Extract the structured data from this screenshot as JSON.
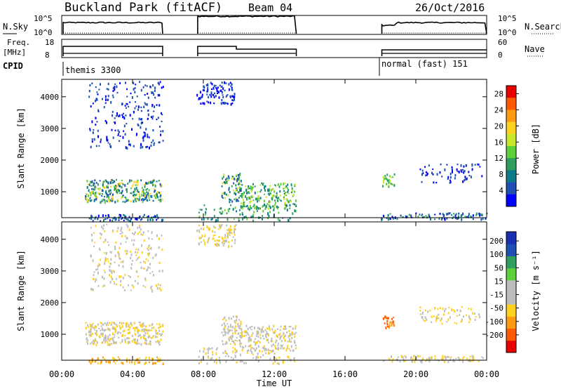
{
  "header": {
    "title": "Buckland Park (fitACF)",
    "beam": "Beam 04",
    "date": "26/Oct/2016"
  },
  "panels": {
    "nsky_label": "N.Sky",
    "nsearch_label": "N.Search",
    "log_ticks": [
      "10^5",
      "10^0"
    ],
    "freq_label_1": "Freq.",
    "freq_label_2": "[MHz]",
    "freq_ticks": [
      "18",
      "8"
    ],
    "nave_label": "Nave",
    "nave_ticks": [
      "60",
      "0"
    ],
    "cpid_label": "CPID",
    "cpid_1": "themis 3300",
    "cpid_2": "normal (fast) 151"
  },
  "colors": {
    "power_scale": [
      "#0000ff",
      "#1f4fb2",
      "#0d7a8a",
      "#2e9f5e",
      "#5fcf3a",
      "#c8e62c",
      "#ffd21e",
      "#ff9b10",
      "#ff5a00",
      "#e60000"
    ],
    "velocity_scale": [
      "#e60000",
      "#ff5a00",
      "#ff9b10",
      "#ffd21e",
      "#bdbdbd",
      "#bdbdbd",
      "#5fcf3a",
      "#2e9f5e",
      "#1f4fb2",
      "#1a2fb0"
    ]
  },
  "chart_data": [
    {
      "type": "heatmap",
      "name": "power",
      "ylabel": "Slant Range [km]",
      "xlabel": "Time UT",
      "xticks": [
        "00:00",
        "04:00",
        "08:00",
        "12:00",
        "16:00",
        "20:00",
        "00:00"
      ],
      "yticks": [
        "1000",
        "2000",
        "3000",
        "4000"
      ],
      "xlim_hours": [
        0,
        24
      ],
      "ylim_km": [
        180,
        4550
      ],
      "colorbar_label": "Power [dB]",
      "colorbar_ticks": [
        "4",
        "8",
        "12",
        "16",
        "20",
        "24",
        "28"
      ],
      "colorbar_range": [
        0,
        30
      ]
    },
    {
      "type": "heatmap",
      "name": "velocity",
      "ylabel": "Slant Range [km]",
      "xlabel": "Time UT",
      "xticks": [
        "00:00",
        "04:00",
        "08:00",
        "12:00",
        "16:00",
        "20:00",
        "00:00"
      ],
      "yticks": [
        "1000",
        "2000",
        "3000",
        "4000"
      ],
      "xlim_hours": [
        0,
        24
      ],
      "ylim_km": [
        180,
        4550
      ],
      "colorbar_label": "Velocity [m s⁻¹]",
      "colorbar_ticks": [
        "200",
        "100",
        "50",
        "15",
        "-15",
        "-50",
        "-100",
        "-200"
      ],
      "colorbar_range": [
        -250,
        250
      ]
    }
  ],
  "operating_periods_hours": [
    [
      0.0,
      5.7
    ],
    [
      7.6,
      13.25
    ],
    [
      18.0,
      24.0
    ]
  ]
}
